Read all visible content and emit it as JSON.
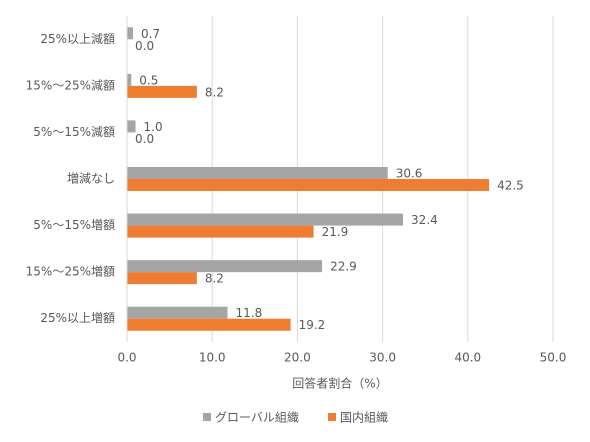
{
  "chart_data": {
    "type": "hbar",
    "xlabel": "回答者割合（%）",
    "categories": [
      "25%以上減額",
      "15%～25%減額",
      "5%～15%減額",
      "増減なし",
      "5%～15%増額",
      "15%～25%増額",
      "25%以上増額"
    ],
    "series": [
      {
        "name": "グローバル組織",
        "color": "#a5a5a5",
        "values": [
          0.7,
          0.5,
          1.0,
          30.6,
          32.4,
          22.9,
          11.8
        ],
        "value_labels": [
          "0.7",
          "0.5",
          "1.0",
          "30.6",
          "32.4",
          "22.9",
          "11.8"
        ]
      },
      {
        "name": "国内組織",
        "color": "#ed7d31",
        "values": [
          0.0,
          8.2,
          0.0,
          42.5,
          21.9,
          8.2,
          19.2
        ],
        "value_labels": [
          "0.0",
          "8.2",
          "0.0",
          "42.5",
          "21.9",
          "8.2",
          "19.2"
        ]
      }
    ],
    "xlim": [
      0,
      50
    ],
    "xticks": [
      {
        "value": 0,
        "label": "0.0"
      },
      {
        "value": 10,
        "label": "10.0"
      },
      {
        "value": 20,
        "label": "20.0"
      },
      {
        "value": 30,
        "label": "30.0"
      },
      {
        "value": 40,
        "label": "40.0"
      },
      {
        "value": 50,
        "label": "50.0"
      }
    ],
    "grid": true
  }
}
